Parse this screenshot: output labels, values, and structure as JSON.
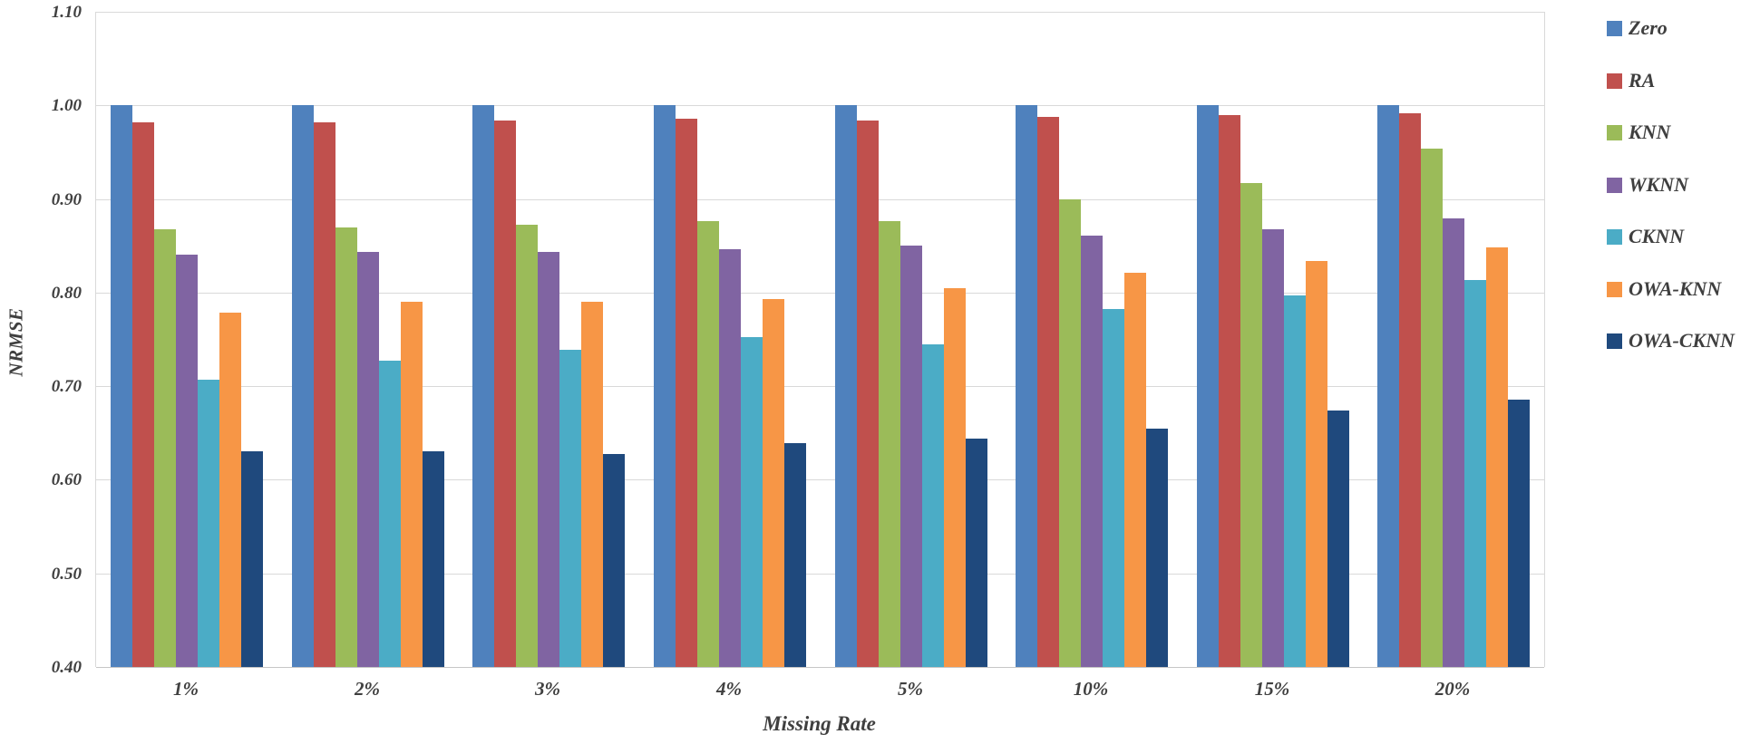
{
  "chart_data": {
    "type": "bar",
    "title": "",
    "xlabel": "Missing Rate",
    "ylabel": "NRMSE",
    "categories": [
      "1%",
      "2%",
      "3%",
      "4%",
      "5%",
      "10%",
      "15%",
      "20%"
    ],
    "series": [
      {
        "name": "Zero",
        "color": "#4F81BD",
        "values": [
          1.0,
          1.0,
          1.0,
          1.0,
          1.0,
          1.0,
          1.0,
          1.0
        ]
      },
      {
        "name": "RA",
        "color": "#C0504D",
        "values": [
          0.982,
          0.982,
          0.984,
          0.986,
          0.984,
          0.988,
          0.99,
          0.992
        ]
      },
      {
        "name": "KNN",
        "color": "#9BBB59",
        "values": [
          0.868,
          0.87,
          0.872,
          0.876,
          0.876,
          0.9,
          0.917,
          0.954
        ]
      },
      {
        "name": "WKNN",
        "color": "#8064A2",
        "values": [
          0.841,
          0.843,
          0.843,
          0.846,
          0.85,
          0.861,
          0.868,
          0.879
        ]
      },
      {
        "name": "CKNN",
        "color": "#4BACC6",
        "values": [
          0.707,
          0.727,
          0.739,
          0.752,
          0.745,
          0.782,
          0.797,
          0.813
        ]
      },
      {
        "name": "OWA-KNN",
        "color": "#F79646",
        "values": [
          0.779,
          0.79,
          0.79,
          0.793,
          0.805,
          0.821,
          0.834,
          0.848
        ]
      },
      {
        "name": "OWA-CKNN",
        "color": "#1F497D",
        "values": [
          0.63,
          0.63,
          0.628,
          0.639,
          0.644,
          0.655,
          0.674,
          0.686
        ]
      }
    ],
    "ylim": [
      0.4,
      1.1
    ],
    "ytick_step": 0.1,
    "ytick_labels": [
      "1.10",
      "1.00",
      "0.90",
      "0.80",
      "0.70",
      "0.60",
      "0.50",
      "0.40"
    ],
    "grid": "horizontal",
    "legend_position": "top-right",
    "colors": {
      "text": "#3F3F3F",
      "tick_text": "#404040",
      "gridline": "#D9D9D9",
      "background": "#FFFFFF"
    }
  }
}
